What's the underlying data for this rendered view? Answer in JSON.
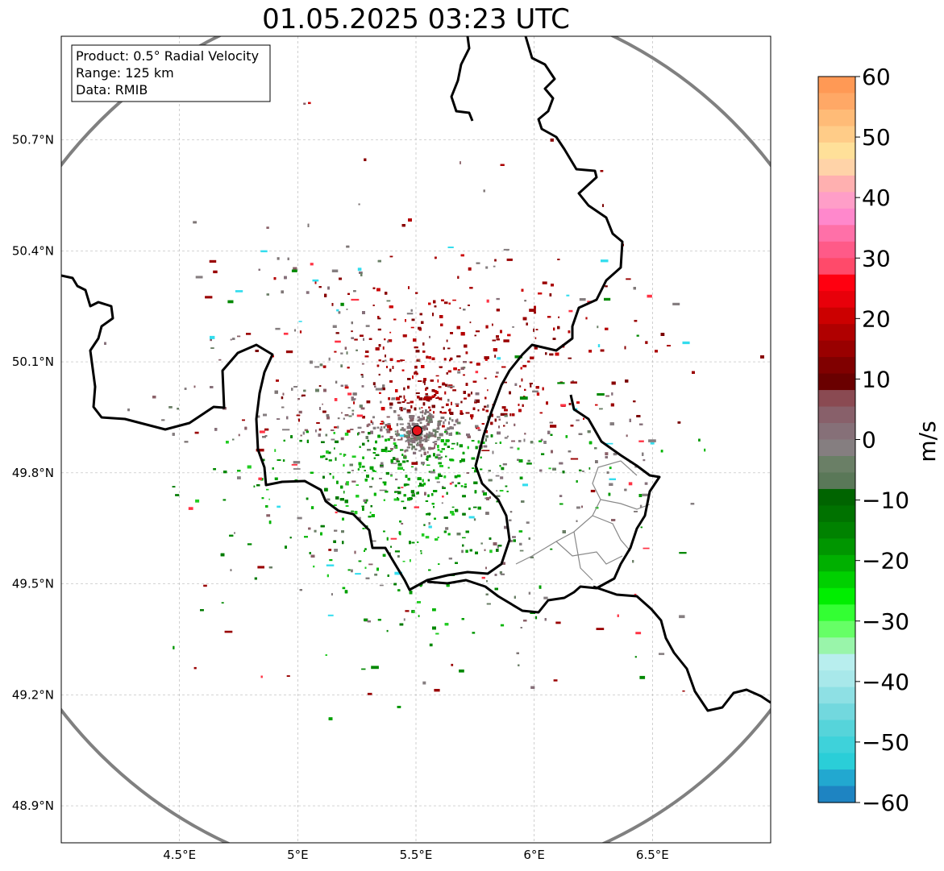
{
  "title": "01.05.2025 03:23 UTC",
  "info": {
    "product": "Product: 0.5° Radial Velocity",
    "range": "Range: 125 km",
    "source": "Data: RMIB"
  },
  "axes": {
    "lon_ticks": [
      4.5,
      5.0,
      5.5,
      6.0,
      6.5
    ],
    "lon_labels": [
      "4.5°E",
      "5°E",
      "5.5°E",
      "6°E",
      "6.5°E"
    ],
    "lat_ticks": [
      48.9,
      49.2,
      49.5,
      49.8,
      50.1,
      50.4,
      50.7
    ],
    "lat_labels": [
      "48.9°N",
      "49.2°N",
      "49.5°N",
      "49.8°N",
      "50.1°N",
      "50.4°N",
      "50.7°N"
    ],
    "lon_range": [
      4.0,
      7.0
    ],
    "lat_range": [
      48.8,
      50.98
    ]
  },
  "radar_site": {
    "lon": 5.505,
    "lat": 49.914,
    "color": "#e8141b"
  },
  "range_ring_km": 125,
  "colorbar": {
    "label": "m/s",
    "ticks": [
      60,
      50,
      40,
      30,
      20,
      10,
      0,
      -10,
      -20,
      -30,
      -40,
      -50,
      -60
    ],
    "tick_labels": [
      "60",
      "50",
      "40",
      "30",
      "20",
      "10",
      "0",
      "−10",
      "−20",
      "−30",
      "−40",
      "−50",
      "−60"
    ],
    "min": -60,
    "max": 60,
    "stops_top_to_bottom": [
      "#ff9955",
      "#ffa866",
      "#ffbb77",
      "#ffcc88",
      "#ffe099",
      "#ffd3a8",
      "#ffb0b0",
      "#ff9ec8",
      "#ff88cc",
      "#ff70a8",
      "#ff5a88",
      "#ff4a6a",
      "#ff0010",
      "#e8000a",
      "#cc0000",
      "#b00000",
      "#990000",
      "#800000",
      "#6a0000",
      "#8a4a52",
      "#88606a",
      "#867078",
      "#857e80",
      "#6a7f66",
      "#5a7858",
      "#006400",
      "#007200",
      "#008200",
      "#009600",
      "#00b000",
      "#00d000",
      "#00ee00",
      "#33ff33",
      "#66ff66",
      "#99f5aa",
      "#b8eeee",
      "#a8e8ea",
      "#8ee0e4",
      "#72d8de",
      "#56d4da",
      "#3ed2da",
      "#2aced8",
      "#22a8d0",
      "#1e84c2"
    ]
  },
  "legend_colors": {
    "border": "#000000",
    "range_ring": "#808080",
    "grid": "#bbbbbb",
    "inbound": "#008800",
    "outbound": "#990000",
    "near_zero": "#857e80"
  }
}
